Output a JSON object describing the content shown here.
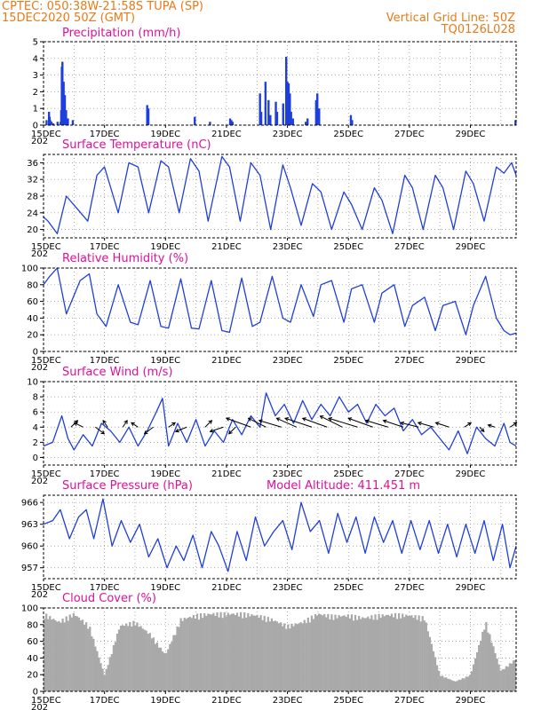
{
  "header": {
    "line1": "CPTEC:   050:38W-21:58S   TUPA (SP)",
    "line2": "15DEC2020 50Z (GMT)",
    "grid_note": "Vertical Grid Line: 50Z",
    "code": "TQ0126L028"
  },
  "colors": {
    "header": "#e87a1a",
    "panel_title": "#e0109a",
    "series": "#1f3fdc",
    "cloud": "#a9a9a9",
    "axis": "#000000"
  },
  "x_axis": {
    "start_label": "15DEC",
    "cutoff_label": "202",
    "labels": [
      "15DEC",
      "17DEC",
      "19DEC",
      "21DEC",
      "23DEC",
      "25DEC",
      "27DEC",
      "29DEC"
    ],
    "label_days": [
      0,
      2,
      4,
      6,
      8,
      10,
      12,
      14
    ],
    "range_days": [
      0,
      15.5
    ],
    "grid_every_days": 1
  },
  "chart_data": [
    {
      "type": "bar",
      "title": "Precipitation  (mm/h)",
      "x_unit": "days from 15DEC2020",
      "ylim": [
        0,
        5
      ],
      "yticks": [
        0,
        1,
        2,
        3,
        4,
        5
      ],
      "ytick_labels": [
        "0",
        "1",
        "2",
        "3",
        "4",
        "5"
      ],
      "grid": true,
      "x": [
        0.1,
        0.18,
        0.2,
        0.22,
        0.26,
        0.3,
        0.32,
        0.46,
        0.56,
        0.58,
        0.6,
        0.62,
        0.66,
        0.68,
        0.7,
        0.74,
        0.8,
        0.96,
        3.4,
        3.44,
        4.96,
        5.46,
        6.12,
        6.16,
        6.2,
        7.1,
        7.14,
        7.28,
        7.38,
        7.44,
        7.62,
        7.66,
        7.86,
        7.96,
        8.0,
        8.04,
        8.08,
        8.12,
        8.18,
        8.6,
        8.66,
        8.94,
        8.98,
        9.04,
        10.08,
        10.12,
        15.48
      ],
      "values": [
        0.3,
        0.8,
        0.5,
        0.3,
        0.2,
        0.1,
        0.1,
        0.2,
        0.2,
        0.9,
        3.5,
        3.8,
        2.6,
        1.2,
        1.8,
        0.9,
        0.4,
        0.3,
        1.2,
        1.0,
        0.5,
        0.2,
        0.4,
        0.3,
        0.2,
        1.9,
        0.8,
        2.6,
        1.5,
        0.6,
        1.4,
        0.8,
        1.3,
        4.1,
        2.6,
        2.5,
        1.9,
        0.8,
        0.4,
        0.2,
        0.4,
        1.5,
        1.9,
        1.0,
        0.6,
        0.3,
        0.3
      ]
    },
    {
      "type": "line",
      "title": "Surface Temperature (nC)",
      "x_unit": "days from 15DEC2020",
      "ylim": [
        18,
        38
      ],
      "yticks": [
        20,
        24,
        28,
        32,
        36
      ],
      "ytick_labels": [
        "20",
        "24",
        "28",
        "32",
        "36"
      ],
      "grid": true,
      "x": [
        0,
        0.15,
        0.45,
        0.75,
        1.1,
        1.45,
        1.75,
        2.0,
        2.45,
        2.8,
        3.1,
        3.45,
        3.85,
        4.1,
        4.45,
        4.82,
        5.1,
        5.4,
        5.85,
        6.1,
        6.45,
        6.8,
        7.1,
        7.45,
        7.85,
        8.1,
        8.45,
        8.82,
        9.1,
        9.45,
        9.85,
        10.1,
        10.45,
        10.85,
        11.1,
        11.45,
        11.85,
        12.1,
        12.45,
        12.85,
        13.1,
        13.45,
        13.85,
        14.1,
        14.45,
        14.85,
        15.1,
        15.35,
        15.5
      ],
      "values": [
        23,
        22,
        19,
        28,
        25,
        22,
        33,
        35,
        24,
        36,
        35,
        24,
        36.5,
        35,
        24,
        37,
        34,
        22,
        37.5,
        35,
        22,
        36,
        33,
        20,
        35.5,
        30,
        21,
        31,
        29,
        20,
        29,
        26,
        20,
        30,
        27,
        19,
        33,
        30,
        20,
        33,
        30,
        20,
        34,
        31,
        22,
        35,
        33.5,
        36,
        33
      ]
    },
    {
      "type": "line",
      "title": "Relative Humidity (%)",
      "x_unit": "days from 15DEC2020",
      "ylim": [
        0,
        100
      ],
      "yticks": [
        0,
        20,
        40,
        60,
        80,
        100
      ],
      "ytick_labels": [
        "0",
        "20",
        "40",
        "60",
        "80",
        "100"
      ],
      "grid": true,
      "x": [
        0,
        0.2,
        0.45,
        0.75,
        1.2,
        1.5,
        1.75,
        2.05,
        2.45,
        2.85,
        3.1,
        3.5,
        3.85,
        4.1,
        4.5,
        4.85,
        5.1,
        5.5,
        5.85,
        6.1,
        6.5,
        6.85,
        7.1,
        7.5,
        7.85,
        8.1,
        8.45,
        8.85,
        9.1,
        9.45,
        9.85,
        10.1,
        10.45,
        10.85,
        11.1,
        11.5,
        11.85,
        12.1,
        12.5,
        12.85,
        13.1,
        13.5,
        13.85,
        14.1,
        14.5,
        14.85,
        15.1,
        15.3,
        15.5
      ],
      "values": [
        80,
        90,
        100,
        45,
        85,
        93,
        45,
        30,
        80,
        35,
        32,
        85,
        30,
        28,
        87,
        28,
        27,
        85,
        25,
        23,
        88,
        30,
        35,
        90,
        40,
        35,
        80,
        42,
        80,
        85,
        35,
        75,
        80,
        35,
        70,
        80,
        30,
        55,
        65,
        25,
        55,
        60,
        20,
        55,
        90,
        40,
        25,
        20,
        22
      ]
    },
    {
      "type": "line",
      "title": "Surface Wind  (m/s)",
      "x_unit": "days from 15DEC2020",
      "ylim": [
        -1,
        10
      ],
      "yticks": [
        0,
        2,
        4,
        6,
        8,
        10
      ],
      "ytick_labels": [
        "0",
        "2",
        "4",
        "6",
        "8",
        "10"
      ],
      "grid": true,
      "x": [
        0,
        0.3,
        0.6,
        0.8,
        1.0,
        1.3,
        1.6,
        1.9,
        2.2,
        2.5,
        2.8,
        3.1,
        3.4,
        3.7,
        3.9,
        4.1,
        4.4,
        4.7,
        5.0,
        5.3,
        5.6,
        5.9,
        6.2,
        6.5,
        6.8,
        7.1,
        7.3,
        7.6,
        7.9,
        8.2,
        8.5,
        8.8,
        9.1,
        9.4,
        9.7,
        10.0,
        10.3,
        10.6,
        10.9,
        11.2,
        11.5,
        11.8,
        12.1,
        12.4,
        12.7,
        13.0,
        13.3,
        13.6,
        13.9,
        14.2,
        14.5,
        14.8,
        15.1,
        15.3,
        15.5
      ],
      "values": [
        1.5,
        2.0,
        5.5,
        2.5,
        1.0,
        3.0,
        1.5,
        4.5,
        3.5,
        2.0,
        4.0,
        1.5,
        3.5,
        6.0,
        7.8,
        1.5,
        4.5,
        2.0,
        5.0,
        1.5,
        3.5,
        2.0,
        5.0,
        3.0,
        5.5,
        4.0,
        8.5,
        5.5,
        7.0,
        4.5,
        7.5,
        5.0,
        7.0,
        5.5,
        8.0,
        6.0,
        7.0,
        4.5,
        7.0,
        5.5,
        6.5,
        3.5,
        5.0,
        3.0,
        4.0,
        2.5,
        1.0,
        3.5,
        0.5,
        4.0,
        2.5,
        1.5,
        4.5,
        2.0,
        1.5
      ],
      "vectors": {
        "x": [
          0.9,
          1.3,
          1.7,
          2.1,
          2.6,
          3.1,
          3.6,
          4.1,
          4.7,
          5.3,
          5.9,
          6.3,
          6.8,
          7.3,
          7.8,
          8.3,
          8.8,
          9.3,
          9.8,
          10.3,
          10.8,
          11.3,
          11.8,
          12.3,
          12.8,
          13.3,
          13.8,
          14.3,
          14.8,
          15.3
        ],
        "u": [
          1.5,
          -2.0,
          2.0,
          -1.0,
          1.0,
          -1.5,
          -2.0,
          1.5,
          -2.5,
          1.5,
          -3.0,
          -1.5,
          -5.5,
          -4.0,
          -5.0,
          -4.5,
          -6.0,
          -5.5,
          -5.0,
          -6.5,
          -5.5,
          -5.0,
          -4.5,
          -4.0,
          -3.5,
          -3.0,
          1.5,
          1.0,
          -1.5,
          1.5
        ],
        "v": [
          1.5,
          1.0,
          -1.5,
          1.5,
          1.5,
          1.0,
          -1.5,
          1.0,
          -1.0,
          1.5,
          -1.0,
          -1.5,
          2.0,
          2.0,
          1.5,
          2.0,
          2.0,
          2.0,
          2.5,
          2.0,
          2.0,
          1.5,
          1.5,
          1.0,
          1.0,
          1.0,
          1.0,
          -1.0,
          0.5,
          1.0
        ]
      }
    },
    {
      "type": "line",
      "title": "Surface Pressure (hPa)",
      "annotation": "Model Altitude: 411.451  m",
      "x_unit": "days from 15DEC2020",
      "ylim": [
        955.5,
        967
      ],
      "yticks": [
        957,
        960,
        963,
        966
      ],
      "ytick_labels": [
        "957",
        "960",
        "963",
        "966"
      ],
      "grid": true,
      "x": [
        0,
        0.3,
        0.55,
        0.85,
        1.15,
        1.4,
        1.65,
        1.95,
        2.25,
        2.55,
        2.85,
        3.15,
        3.45,
        3.75,
        4.05,
        4.35,
        4.6,
        4.9,
        5.2,
        5.5,
        5.75,
        6.05,
        6.35,
        6.65,
        6.95,
        7.25,
        7.55,
        7.85,
        8.15,
        8.45,
        8.75,
        9.05,
        9.35,
        9.65,
        9.95,
        10.25,
        10.55,
        10.85,
        11.15,
        11.45,
        11.75,
        12.05,
        12.35,
        12.65,
        12.95,
        13.25,
        13.55,
        13.85,
        14.15,
        14.45,
        14.75,
        15.05,
        15.3,
        15.5
      ],
      "values": [
        963,
        963.5,
        965,
        961,
        964,
        965,
        961,
        966.5,
        960,
        963.5,
        960.5,
        963,
        958.5,
        961,
        957,
        960,
        958,
        961.5,
        957,
        962,
        960,
        956.5,
        962,
        958,
        964,
        960,
        962,
        963.5,
        959.5,
        966,
        962,
        963.5,
        959,
        964.5,
        960.5,
        964,
        959,
        964,
        960.5,
        963.5,
        959,
        963.5,
        959.5,
        963.5,
        959,
        963,
        958.5,
        963,
        959,
        963.5,
        958,
        963,
        957,
        960
      ]
    },
    {
      "type": "bar",
      "title": "Cloud Cover (%)",
      "x_unit": "days from 15DEC2020",
      "ylim": [
        0,
        100
      ],
      "yticks": [
        0,
        20,
        40,
        60,
        80,
        100
      ],
      "ytick_labels": [
        "0",
        "20",
        "40",
        "60",
        "80",
        "100"
      ],
      "grid": true,
      "x": [
        0,
        0.5,
        1.0,
        1.5,
        2.0,
        2.5,
        3.0,
        3.5,
        4.0,
        4.5,
        5.0,
        5.5,
        6.0,
        6.5,
        7.0,
        7.5,
        8.0,
        8.5,
        9.0,
        9.5,
        10.0,
        10.5,
        11.0,
        11.5,
        12.0,
        12.5,
        13.0,
        13.5,
        14.0,
        14.5,
        15.0,
        15.5
      ],
      "values": [
        95,
        85,
        95,
        80,
        20,
        80,
        85,
        70,
        45,
        88,
        93,
        95,
        95,
        95,
        93,
        88,
        80,
        85,
        95,
        92,
        93,
        90,
        93,
        94,
        93,
        90,
        20,
        12,
        20,
        85,
        25,
        40
      ]
    }
  ]
}
